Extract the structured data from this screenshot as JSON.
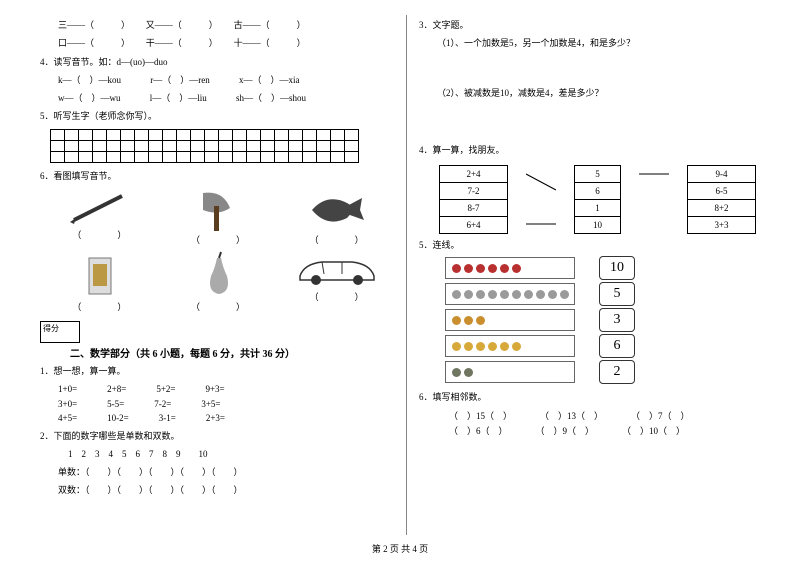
{
  "footer": "第 2 页  共 4 页",
  "left": {
    "q3_items": [
      "三——（　　　）",
      "又——（　　　）",
      "古——（　　　）"
    ],
    "q3_items2": [
      "口——（　　　）",
      "干——（　　　）",
      "十——（　　　）"
    ],
    "q4_title": "4．读写音节。如：d—(uo)—duo",
    "q4_row1": [
      "k—（　）—kou",
      "r—（　）—ren",
      "x—（　）—xia"
    ],
    "q4_row2": [
      "w—（　）—wu",
      "l—（　）—liu",
      "sh—（　）—shou"
    ],
    "q5_title": "5．听写生字（老师念你写）。",
    "q6_title": "6．看图填写音节。",
    "paren_text": "（　　　　）",
    "score_label": "得分",
    "section2_title": "二、数学部分（共 6 小题，每题 6 分，共计 36 分）",
    "m1_title": "1．想一想，算一算。",
    "m1_rows": [
      [
        "1+0=",
        "2+8=",
        "5+2=",
        "9+3="
      ],
      [
        "3+0=",
        "5-5=",
        "7-2=",
        "3+5="
      ],
      [
        "4+5=",
        "10-2=",
        "3-1=",
        "2+3="
      ]
    ],
    "m2_title": "2．下面的数字哪些是单数和双数。",
    "m2_nums": "1　2　3　4　5　6　7　8　9　　10",
    "m2_odd": "单数：（　　）（　　）（　　）（　　）（　　）",
    "m2_even": "双数：（　　）（　　）（　　）（　　）（　　）"
  },
  "right": {
    "q3_title": "3．文字题。",
    "q3_1": "（1）、一个加数是5，另一个加数是4，和是多少？",
    "q3_2": "（2）、被减数是10，减数是4，差是多少？",
    "q4_title": "4．算一算，找朋友。",
    "friends_left": [
      "2+4",
      "7-2",
      "8-7",
      "6+4"
    ],
    "friends_mid": [
      "5",
      "6",
      "1",
      "10"
    ],
    "friends_right": [
      "9-4",
      "6-5",
      "8+2",
      "3+3"
    ],
    "q5_title": "5．连线。",
    "link_nums": [
      "10",
      "5",
      "3",
      "6",
      "2"
    ],
    "counts": [
      6,
      10,
      3,
      6,
      2
    ],
    "colors": [
      "#b83030",
      "#9a9a9a",
      "#c98f2e",
      "#d6a93a",
      "#707560"
    ],
    "q6_title": "6．填写相邻数。",
    "q6_row1": [
      "（　）15（　）",
      "（　）13（　）",
      "（　）7（　）"
    ],
    "q6_row2": [
      "（　）6（　）",
      "（　）9（　）",
      "（　）10（　）"
    ]
  }
}
